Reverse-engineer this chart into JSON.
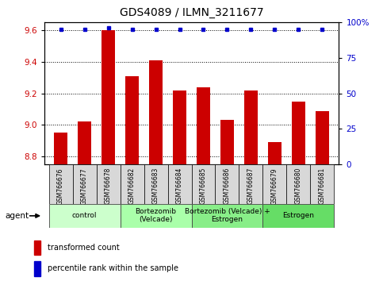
{
  "title": "GDS4089 / ILMN_3211677",
  "samples": [
    "GSM766676",
    "GSM766677",
    "GSM766678",
    "GSM766682",
    "GSM766683",
    "GSM766684",
    "GSM766685",
    "GSM766686",
    "GSM766687",
    "GSM766679",
    "GSM766680",
    "GSM766681"
  ],
  "transformed_counts": [
    8.95,
    9.02,
    9.6,
    9.31,
    9.41,
    9.22,
    9.24,
    9.03,
    9.22,
    8.89,
    9.15,
    9.09
  ],
  "percentile_ranks": [
    95,
    95,
    96,
    95,
    95,
    95,
    95,
    95,
    95,
    95,
    95,
    95
  ],
  "ylim_left": [
    8.75,
    9.65
  ],
  "ylim_right": [
    0,
    100
  ],
  "yticks_left": [
    8.8,
    9.0,
    9.2,
    9.4,
    9.6
  ],
  "yticks_right": [
    0,
    25,
    50,
    75,
    100
  ],
  "bar_color": "#cc0000",
  "dot_color": "#0000cc",
  "bar_bottom": 8.75,
  "agent_groups": [
    {
      "label": "control",
      "start": 0,
      "end": 3,
      "color": "#ccffcc"
    },
    {
      "label": "Bortezomib\n(Velcade)",
      "start": 3,
      "end": 6,
      "color": "#aaffaa"
    },
    {
      "label": "Bortezomib (Velcade) +\nEstrogen",
      "start": 6,
      "end": 9,
      "color": "#88ee88"
    },
    {
      "label": "Estrogen",
      "start": 9,
      "end": 12,
      "color": "#66dd66"
    }
  ],
  "legend_red_label": "transformed count",
  "legend_blue_label": "percentile rank within the sample",
  "agent_label": "agent",
  "xlabel_color": "#cc0000",
  "right_axis_color": "#0000cc",
  "sample_box_color": "#d8d8d8",
  "title_fontsize": 10,
  "tick_fontsize": 7.5,
  "sample_fontsize": 5.5,
  "agent_fontsize": 6.5,
  "legend_fontsize": 7
}
